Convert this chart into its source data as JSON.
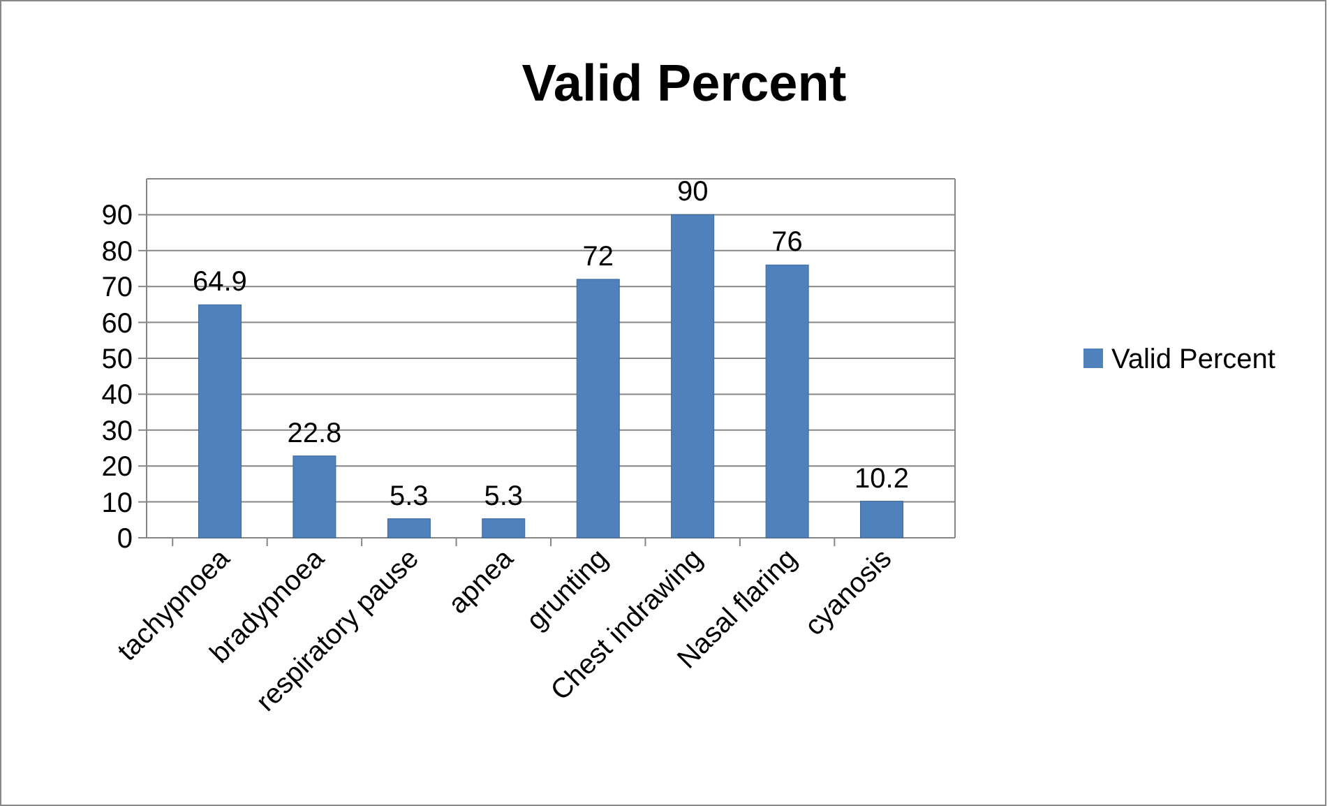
{
  "chart_data": {
    "type": "bar",
    "title": "Valid Percent",
    "categories": [
      "tachypnoea",
      "bradypnoea",
      "respiratory pause",
      "apnea",
      "grunting",
      "Chest indrawing",
      "Nasal flaring",
      "cyanosis"
    ],
    "series": [
      {
        "name": "Valid Percent",
        "color": "#4f81bd",
        "values": [
          64.9,
          22.8,
          5.3,
          5.3,
          72,
          90,
          76,
          10.2
        ]
      }
    ],
    "ylim": [
      0,
      100
    ],
    "yticks": [
      0,
      10,
      20,
      30,
      40,
      50,
      60,
      70,
      80,
      90
    ],
    "grid": "y",
    "legend": "right",
    "data_labels": true
  }
}
